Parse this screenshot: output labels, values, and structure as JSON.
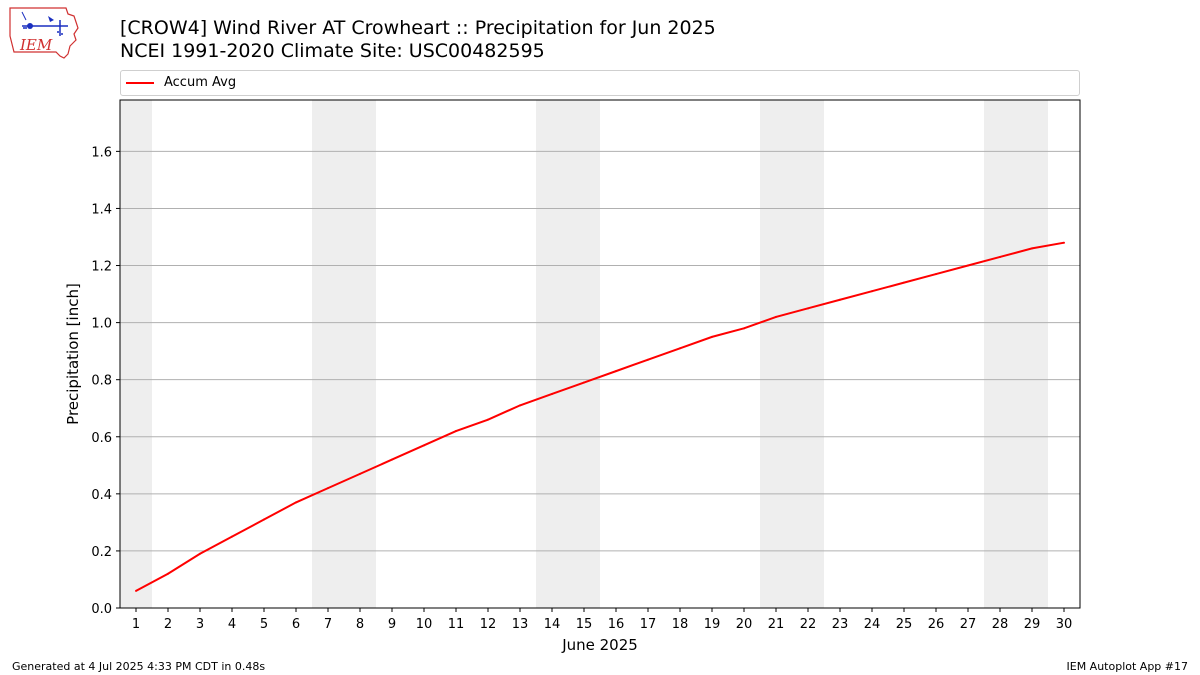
{
  "header": {
    "title_line1": "[CROW4] Wind River  AT Crowheart :: Precipitation for Jun 2025",
    "title_line2": "NCEI 1991-2020 Climate Site: USC00482595"
  },
  "logo": {
    "text": "IEM",
    "icon": "iem-logo-icon"
  },
  "footer": {
    "generated": "Generated at 4 Jul 2025 4:33 PM CDT in 0.48s",
    "app": "IEM Autoplot App #17"
  },
  "chart_data": {
    "type": "line",
    "x": [
      1,
      2,
      3,
      4,
      5,
      6,
      7,
      8,
      9,
      10,
      11,
      12,
      13,
      14,
      15,
      16,
      17,
      18,
      19,
      20,
      21,
      22,
      23,
      24,
      25,
      26,
      27,
      28,
      29,
      30
    ],
    "series": [
      {
        "name": "Accum Avg",
        "color": "#ff0000",
        "values": [
          0.06,
          0.12,
          0.19,
          0.25,
          0.31,
          0.37,
          0.42,
          0.47,
          0.52,
          0.57,
          0.62,
          0.66,
          0.71,
          0.75,
          0.79,
          0.83,
          0.87,
          0.91,
          0.95,
          0.98,
          1.02,
          1.05,
          1.08,
          1.11,
          1.14,
          1.17,
          1.2,
          1.23,
          1.26,
          1.28
        ]
      }
    ],
    "xlabel": "June 2025",
    "ylabel": "Precipitation [inch]",
    "xlim": [
      0.5,
      30.5
    ],
    "ylim": [
      0,
      1.78
    ],
    "yticks": [
      "0.0",
      "0.2",
      "0.4",
      "0.6",
      "0.8",
      "1.0",
      "1.2",
      "1.4",
      "1.6"
    ],
    "weekend_shading": [
      [
        0.5,
        1.5
      ],
      [
        6.5,
        8.5
      ],
      [
        13.5,
        15.5
      ],
      [
        20.5,
        22.5
      ],
      [
        27.5,
        29.5
      ]
    ],
    "shade_color": "#eeeeee",
    "grid": "horizontal",
    "legend_position": "top"
  }
}
